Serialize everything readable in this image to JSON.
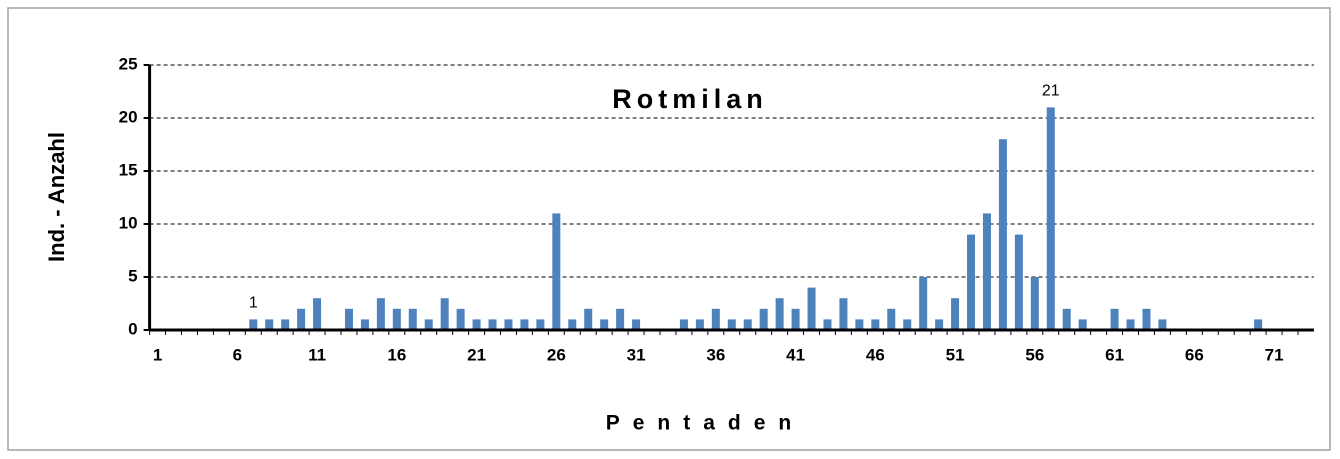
{
  "chart_data": {
    "type": "bar",
    "title": "Rotmilan",
    "x_label": "Pentaden",
    "y_label": "Ind. - Anzahl",
    "categories": [
      1,
      null,
      null,
      null,
      null,
      6,
      null,
      null,
      null,
      null,
      11,
      null,
      null,
      null,
      null,
      16,
      null,
      null,
      null,
      null,
      21,
      null,
      null,
      null,
      null,
      26,
      null,
      null,
      null,
      null,
      31,
      null,
      null,
      null,
      null,
      36,
      null,
      null,
      null,
      null,
      41,
      null,
      null,
      null,
      null,
      46,
      null,
      null,
      null,
      null,
      51,
      null,
      null,
      null,
      null,
      56,
      null,
      null,
      null,
      null,
      61,
      null,
      null,
      null,
      null,
      66,
      null,
      null,
      null,
      null,
      71,
      null,
      null
    ],
    "values": [
      0,
      0,
      0,
      0,
      0,
      0,
      1,
      1,
      1,
      2,
      3,
      0,
      2,
      1,
      3,
      2,
      2,
      1,
      3,
      2,
      1,
      1,
      1,
      1,
      1,
      11,
      1,
      2,
      1,
      2,
      1,
      0,
      0,
      1,
      1,
      2,
      1,
      1,
      2,
      3,
      2,
      4,
      1,
      3,
      1,
      1,
      2,
      1,
      5,
      1,
      3,
      9,
      11,
      18,
      9,
      5,
      21,
      2,
      1,
      0,
      2,
      1,
      2,
      1,
      0,
      0,
      0,
      0,
      0,
      1,
      0,
      0,
      0
    ],
    "value_labels": [
      null,
      null,
      null,
      null,
      null,
      null,
      "1",
      null,
      null,
      null,
      null,
      null,
      null,
      null,
      null,
      null,
      null,
      null,
      null,
      null,
      null,
      null,
      null,
      null,
      null,
      null,
      null,
      null,
      null,
      null,
      null,
      null,
      null,
      null,
      null,
      null,
      null,
      null,
      null,
      null,
      null,
      null,
      null,
      null,
      null,
      null,
      null,
      null,
      null,
      null,
      null,
      null,
      null,
      null,
      null,
      null,
      "21",
      null,
      null,
      null,
      null,
      null,
      null,
      null,
      null,
      null,
      null,
      null,
      null,
      null,
      null,
      null,
      null
    ],
    "color": "#4f81bd",
    "ylim": [
      0,
      25
    ],
    "yticks": [
      0,
      5,
      10,
      15,
      20,
      25
    ],
    "grid": true
  }
}
